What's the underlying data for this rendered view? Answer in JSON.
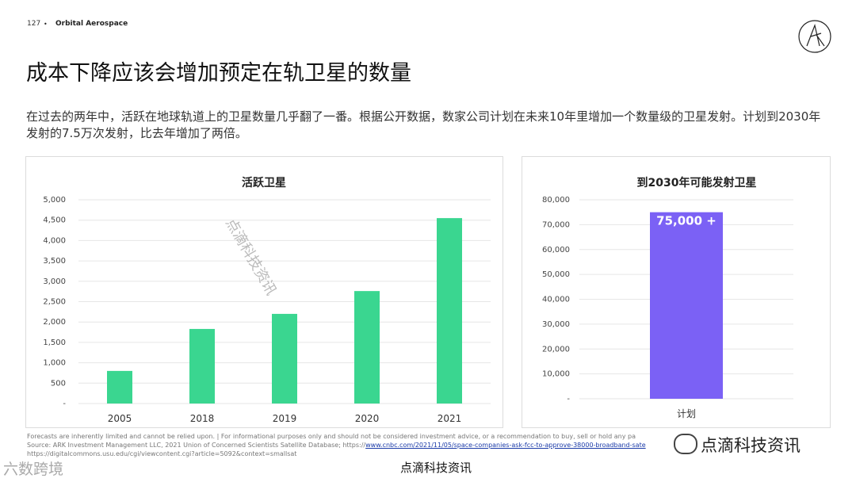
{
  "header": {
    "page_number": "127",
    "brand": "Orbital Aerospace"
  },
  "title": "成本下降应该会增加预定在轨卫星的数量",
  "subtitle": "在过去的两年中，活跃在地球轨道上的卫星数量几乎翻了一番。根据公开数据，数家公司计划在未来10年里增加一个数量级的卫星发射。计划到2030年发射的7.5万次发射，比去年增加了两倍。",
  "chart_data": [
    {
      "type": "bar",
      "title": "活跃卫星",
      "categories": [
        "2005",
        "2018",
        "2019",
        "2020",
        "2021"
      ],
      "values": [
        800,
        1830,
        2200,
        2760,
        4550
      ],
      "ylim": [
        0,
        5000
      ],
      "yticks": [
        "-",
        "500",
        "1,000",
        "1,500",
        "2,000",
        "2,500",
        "3,000",
        "3,500",
        "4,000",
        "4,500",
        "5,000"
      ],
      "grid": true,
      "color": "#3ad690"
    },
    {
      "type": "bar",
      "title": "到2030年可能发射卫星",
      "categories": [
        "计划"
      ],
      "values": [
        75000
      ],
      "data_label": "75,000 +",
      "ylim": [
        0,
        80000
      ],
      "yticks": [
        "-",
        "10,000",
        "20,000",
        "30,000",
        "40,000",
        "50,000",
        "60,000",
        "70,000",
        "80,000"
      ],
      "grid": true,
      "color": "#7b61f5"
    }
  ],
  "footer": {
    "line1": "Forecasts are inherently limited and cannot be relied upon. | For informational purposes only and should not be considered investment advice, or a recommendation to buy, sell or hold any pa",
    "line2_prefix": "Source: ARK Investment Management LLC, 2021 Union of Concerned Scientists Satellite Database; https://",
    "line2_link": "www.cnbc.com/2021/11/05/space-companies-ask-fcc-to-approve-38000-broadband-sate",
    "line3": "https://digitalcommons.usu.edu/cgi/viewcontent.cgi?article=5092&context=smallsat"
  },
  "watermarks": {
    "bottom": "点滴科技资讯",
    "right": "点滴科技资讯",
    "left": "六数跨境",
    "diagonal": "点滴科技资讯"
  }
}
